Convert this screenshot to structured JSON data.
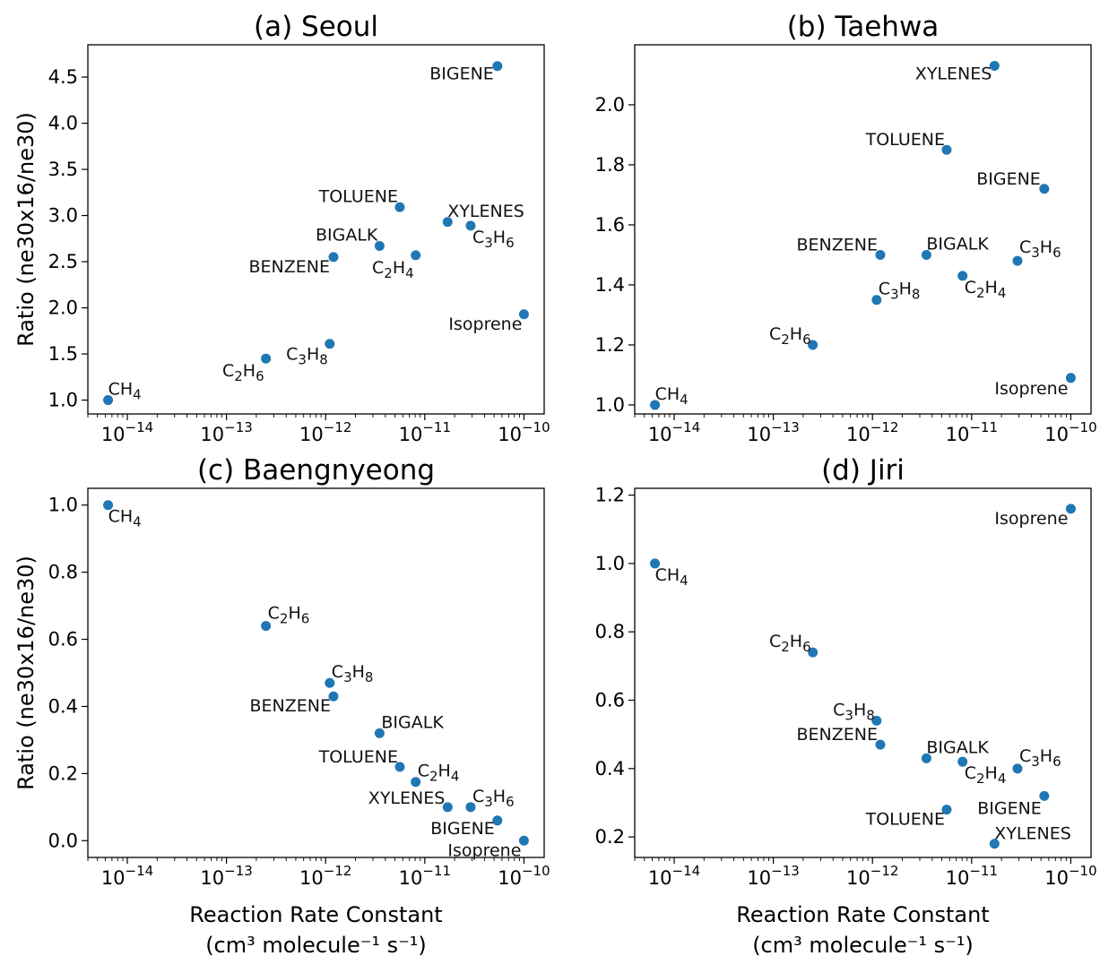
{
  "colors": {
    "marker": "#1f77b4",
    "axes": "#000000"
  },
  "chart_data": [
    {
      "type": "scatter",
      "title": "(a) Seoul",
      "xlabel": "",
      "xunit": "",
      "ylabel": "Ratio (ne30x16/ne30)",
      "xscale": "log",
      "xlim": [
        4e-15,
        1.6e-10
      ],
      "ylim": [
        0.85,
        4.85
      ],
      "yticks": [
        "1.0",
        "1.5",
        "2.0",
        "2.5",
        "3.0",
        "3.5",
        "4.0",
        "4.5"
      ],
      "xticks": [
        "10^-14",
        "10^-13",
        "10^-12",
        "10^-11",
        "10^-10"
      ],
      "grid": false,
      "points": [
        {
          "name": "CH4",
          "x": 6.4e-15,
          "y": 1.0
        },
        {
          "name": "C2H6",
          "x": 2.5e-13,
          "y": 1.45
        },
        {
          "name": "C3H8",
          "x": 1.1e-12,
          "y": 1.61
        },
        {
          "name": "BENZENE",
          "x": 1.2e-12,
          "y": 2.55
        },
        {
          "name": "BIGALK",
          "x": 3.5e-12,
          "y": 2.67
        },
        {
          "name": "TOLUENE",
          "x": 5.6e-12,
          "y": 3.09
        },
        {
          "name": "C2H4",
          "x": 8.1e-12,
          "y": 2.57
        },
        {
          "name": "XYLENES",
          "x": 1.7e-11,
          "y": 2.93
        },
        {
          "name": "C3H6",
          "x": 2.9e-11,
          "y": 2.89
        },
        {
          "name": "BIGENE",
          "x": 5.4e-11,
          "y": 4.62
        },
        {
          "name": "Isoprene",
          "x": 1e-10,
          "y": 1.93
        }
      ]
    },
    {
      "type": "scatter",
      "title": "(b) Taehwa",
      "xlabel": "",
      "xunit": "",
      "ylabel": "",
      "xscale": "log",
      "xlim": [
        4e-15,
        1.6e-10
      ],
      "ylim": [
        0.97,
        2.2
      ],
      "yticks": [
        "1.0",
        "1.2",
        "1.4",
        "1.6",
        "1.8",
        "2.0"
      ],
      "xticks": [
        "10^-14",
        "10^-13",
        "10^-12",
        "10^-11",
        "10^-10"
      ],
      "grid": false,
      "points": [
        {
          "name": "CH4",
          "x": 6.4e-15,
          "y": 1.0
        },
        {
          "name": "C2H6",
          "x": 2.5e-13,
          "y": 1.2
        },
        {
          "name": "C3H8",
          "x": 1.1e-12,
          "y": 1.35
        },
        {
          "name": "BENZENE",
          "x": 1.2e-12,
          "y": 1.5
        },
        {
          "name": "BIGALK",
          "x": 3.5e-12,
          "y": 1.5
        },
        {
          "name": "TOLUENE",
          "x": 5.6e-12,
          "y": 1.85
        },
        {
          "name": "C2H4",
          "x": 8.1e-12,
          "y": 1.43
        },
        {
          "name": "XYLENES",
          "x": 1.7e-11,
          "y": 2.13
        },
        {
          "name": "C3H6",
          "x": 2.9e-11,
          "y": 1.48
        },
        {
          "name": "BIGENE",
          "x": 5.4e-11,
          "y": 1.72
        },
        {
          "name": "Isoprene",
          "x": 1e-10,
          "y": 1.09
        }
      ]
    },
    {
      "type": "scatter",
      "title": "(c) Baengnyeong",
      "xlabel": "Reaction Rate Constant",
      "xunit": "(cm³ molecule⁻¹ s⁻¹)",
      "ylabel": "Ratio (ne30x16/ne30)",
      "xscale": "log",
      "xlim": [
        4e-15,
        1.6e-10
      ],
      "ylim": [
        -0.05,
        1.05
      ],
      "yticks": [
        "0.0",
        "0.2",
        "0.4",
        "0.6",
        "0.8",
        "1.0"
      ],
      "xticks": [
        "10^-14",
        "10^-13",
        "10^-12",
        "10^-11",
        "10^-10"
      ],
      "grid": false,
      "points": [
        {
          "name": "CH4",
          "x": 6.4e-15,
          "y": 1.0
        },
        {
          "name": "C2H6",
          "x": 2.5e-13,
          "y": 0.64
        },
        {
          "name": "C3H8",
          "x": 1.1e-12,
          "y": 0.47
        },
        {
          "name": "BENZENE",
          "x": 1.2e-12,
          "y": 0.43
        },
        {
          "name": "BIGALK",
          "x": 3.5e-12,
          "y": 0.32
        },
        {
          "name": "TOLUENE",
          "x": 5.6e-12,
          "y": 0.22
        },
        {
          "name": "C2H4",
          "x": 8.1e-12,
          "y": 0.175
        },
        {
          "name": "XYLENES",
          "x": 1.7e-11,
          "y": 0.1
        },
        {
          "name": "C3H6",
          "x": 2.9e-11,
          "y": 0.1
        },
        {
          "name": "BIGENE",
          "x": 5.4e-11,
          "y": 0.06
        },
        {
          "name": "Isoprene",
          "x": 1e-10,
          "y": 0.0
        }
      ]
    },
    {
      "type": "scatter",
      "title": "(d) Jiri",
      "xlabel": "Reaction Rate Constant",
      "xunit": "(cm³ molecule⁻¹ s⁻¹)",
      "ylabel": "",
      "xscale": "log",
      "xlim": [
        4e-15,
        1.6e-10
      ],
      "ylim": [
        0.14,
        1.22
      ],
      "yticks": [
        "0.2",
        "0.4",
        "0.6",
        "0.8",
        "1.0",
        "1.2"
      ],
      "xticks": [
        "10^-14",
        "10^-13",
        "10^-12",
        "10^-11",
        "10^-10"
      ],
      "grid": false,
      "points": [
        {
          "name": "CH4",
          "x": 6.4e-15,
          "y": 1.0
        },
        {
          "name": "C2H6",
          "x": 2.5e-13,
          "y": 0.74
        },
        {
          "name": "C3H8",
          "x": 1.1e-12,
          "y": 0.54
        },
        {
          "name": "BENZENE",
          "x": 1.2e-12,
          "y": 0.47
        },
        {
          "name": "BIGALK",
          "x": 3.5e-12,
          "y": 0.43
        },
        {
          "name": "TOLUENE",
          "x": 5.6e-12,
          "y": 0.28
        },
        {
          "name": "C2H4",
          "x": 8.1e-12,
          "y": 0.42
        },
        {
          "name": "XYLENES",
          "x": 1.7e-11,
          "y": 0.18
        },
        {
          "name": "C3H6",
          "x": 2.9e-11,
          "y": 0.4
        },
        {
          "name": "BIGENE",
          "x": 5.4e-11,
          "y": 0.32
        },
        {
          "name": "Isoprene",
          "x": 1e-10,
          "y": 1.16
        }
      ]
    }
  ]
}
